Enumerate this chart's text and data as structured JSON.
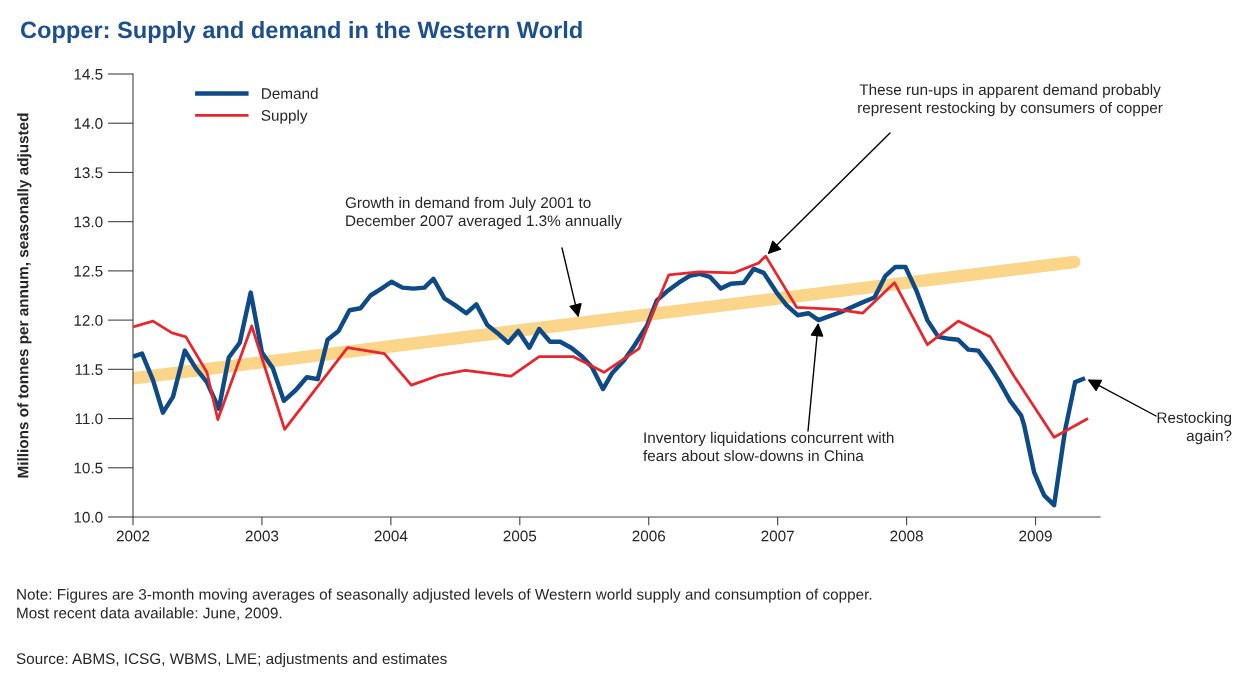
{
  "chart_data": {
    "type": "line",
    "title": "Copper: Supply and demand in the Western World",
    "ylabel": "Millions of tonnes per annum, seasonally adjusted",
    "xlim": [
      2002,
      2009.5
    ],
    "xticks": [
      2002,
      2003,
      2004,
      2005,
      2006,
      2007,
      2008,
      2009
    ],
    "ylim": [
      10,
      14.5
    ],
    "yticks": [
      {
        "value": 10,
        "label": "10.0"
      },
      10.5,
      {
        "value": 11,
        "label": "11.0"
      },
      11.5,
      {
        "value": 12,
        "label": "12.0"
      },
      12.5,
      {
        "value": 13,
        "label": "13.0"
      },
      13.5,
      {
        "value": 14,
        "label": "14.0"
      },
      14.5
    ],
    "grid": false,
    "legend": "top left",
    "marker": "none",
    "line_style": "solid",
    "series": [
      {
        "name": "Demand",
        "color": "#0d4a86",
        "x": [
          2002.0,
          2002.07,
          2002.155,
          2002.232,
          2002.31,
          2002.402,
          2002.488,
          2002.573,
          2002.666,
          2002.743,
          2002.828,
          2002.913,
          2003.0,
          2003.085,
          2003.17,
          2003.263,
          2003.348,
          2003.433,
          2003.509,
          2003.594,
          2003.679,
          2003.764,
          2003.842,
          2003.927,
          2004.005,
          2004.09,
          2004.175,
          2004.26,
          2004.33,
          2004.415,
          2004.5,
          2004.585,
          2004.663,
          2004.748,
          2004.825,
          2004.91,
          2004.988,
          2005.074,
          2005.15,
          2005.235,
          2005.313,
          2005.398,
          2005.483,
          2005.56,
          2005.645,
          2005.715,
          2005.808,
          2005.893,
          2005.985,
          2006.063,
          2006.14,
          2006.233,
          2006.318,
          2006.396,
          2006.474,
          2006.559,
          2006.636,
          2006.737,
          2006.814,
          2006.892,
          2006.992,
          2007.07,
          2007.155,
          2007.24,
          2007.317,
          2007.402,
          2007.488,
          2007.573,
          2007.658,
          2007.751,
          2007.836,
          2007.913,
          2007.991,
          2008.076,
          2008.161,
          2008.246,
          2008.331,
          2008.401,
          2008.478,
          2008.556,
          2008.641,
          2008.718,
          2008.803,
          2008.889,
          2008.912,
          2008.99,
          2009.067,
          2009.144,
          2009.229,
          2009.307,
          2009.384
        ],
        "values": [
          11.63,
          11.66,
          11.39,
          11.06,
          11.22,
          11.69,
          11.51,
          11.37,
          11.1,
          11.62,
          11.77,
          12.28,
          11.67,
          11.51,
          11.18,
          11.29,
          11.42,
          11.4,
          11.8,
          11.89,
          12.1,
          12.12,
          12.25,
          12.32,
          12.39,
          12.33,
          12.32,
          12.33,
          12.42,
          12.22,
          12.15,
          12.07,
          12.16,
          11.95,
          11.87,
          11.77,
          11.89,
          11.72,
          11.91,
          11.78,
          11.78,
          11.72,
          11.63,
          11.52,
          11.3,
          11.46,
          11.59,
          11.75,
          11.94,
          12.2,
          12.29,
          12.38,
          12.45,
          12.47,
          12.44,
          12.32,
          12.37,
          12.38,
          12.52,
          12.48,
          12.28,
          12.15,
          12.05,
          12.07,
          12.0,
          12.04,
          12.08,
          12.13,
          12.18,
          12.23,
          12.45,
          12.54,
          12.54,
          12.3,
          12.0,
          11.83,
          11.81,
          11.8,
          11.7,
          11.69,
          11.54,
          11.38,
          11.18,
          11.03,
          10.93,
          10.45,
          10.22,
          10.12,
          10.88,
          11.37,
          11.41
        ]
      },
      {
        "name": "Supply",
        "color": "#e8262d",
        "x": [
          2002.0,
          2002.155,
          2002.302,
          2002.41,
          2002.573,
          2002.658,
          2002.921,
          2003.176,
          2003.664,
          2003.95,
          2004.159,
          2004.376,
          2004.577,
          2004.763,
          2004.933,
          2005.15,
          2005.413,
          2005.653,
          2005.924,
          2006.04,
          2006.156,
          2006.389,
          2006.659,
          2006.853,
          2006.907,
          2007.147,
          2007.457,
          2007.658,
          2007.906,
          2008.161,
          2008.401,
          2008.649,
          2008.834,
          2009.144,
          2009.407
        ],
        "values": [
          11.93,
          11.99,
          11.87,
          11.83,
          11.47,
          10.99,
          11.94,
          10.89,
          11.72,
          11.66,
          11.34,
          11.44,
          11.49,
          11.46,
          11.43,
          11.63,
          11.63,
          11.47,
          11.71,
          12.1,
          12.46,
          12.49,
          12.48,
          12.58,
          12.65,
          12.13,
          12.11,
          12.07,
          12.38,
          11.75,
          11.99,
          11.83,
          11.43,
          10.81,
          11.0
        ]
      },
      {
        "type": "line",
        "color": "#fbd58a",
        "x": [
          2002.0,
          2009.3
        ],
        "values": [
          11.41,
          12.59
        ]
      }
    ],
    "annotations": [
      {
        "text": "Growth in demand from July 2001 to\nDecember 2007 averaged 1.3% annually",
        "x": 2005.46,
        "y": 12.0
      },
      {
        "text": "These run-ups in apparent demand probably\nrepresent restocking by consumers of copper",
        "x": 2006.907,
        "y": 12.65
      },
      {
        "text": "Inventory liquidations concurrent with\nfears about slow-downs in China",
        "x": 2007.317,
        "y": 12.0
      },
      {
        "text": "Restocking\nagain?",
        "x": 2009.384,
        "y": 11.41
      },
      "Note: Figures are 3-month moving averages of seasonally adjusted levels of Western world supply and consumption of copper.\nMost recent data available: June, 2009.",
      "Source: ABMS, ICSG, WBMS, LME; adjustments and estimates"
    ]
  }
}
